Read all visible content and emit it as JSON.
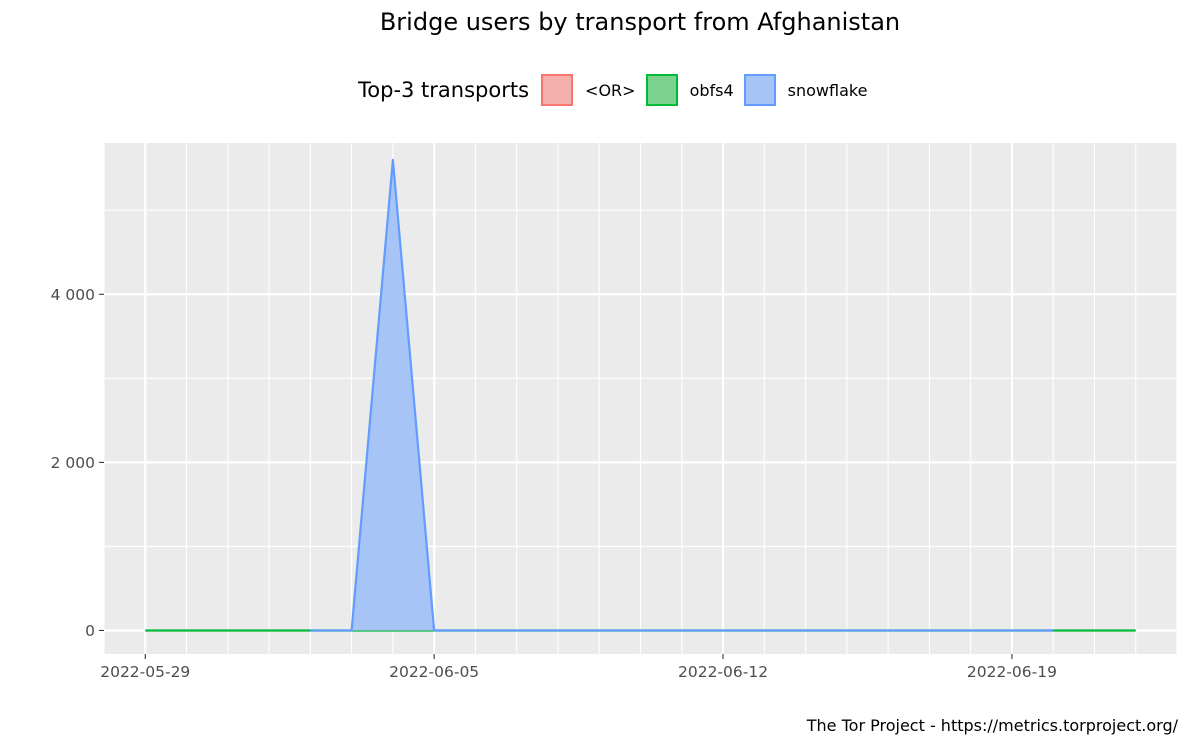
{
  "chart_data": {
    "type": "area",
    "title": "Bridge users by transport from Afghanistan",
    "xlabel": "",
    "ylabel": "",
    "xlim": [
      "2022-05-28",
      "2022-06-23"
    ],
    "ylim": [
      -280,
      5800
    ],
    "y_ticks": [
      0,
      2000,
      4000
    ],
    "y_tick_labels": [
      "0",
      "2 000",
      "4 000"
    ],
    "x_ticks": [
      "2022-05-29",
      "2022-06-05",
      "2022-06-12",
      "2022-06-19"
    ],
    "grid": true,
    "legend": {
      "title": "Top-3 transports",
      "position": "top",
      "entries": [
        {
          "name": "<OR>",
          "fill": "#f4b0ac",
          "line": "#f8766d"
        },
        {
          "name": "obfs4",
          "fill": "#7cd390",
          "line": "#00ba38"
        },
        {
          "name": "snowflake",
          "fill": "#a6c4f6",
          "line": "#619cff"
        }
      ]
    },
    "series": [
      {
        "name": "<OR>",
        "points": []
      },
      {
        "name": "obfs4",
        "points": [
          [
            "2022-05-29",
            0
          ],
          [
            "2022-05-30",
            0
          ],
          [
            "2022-05-31",
            0
          ],
          [
            "2022-06-01",
            0
          ],
          [
            "2022-06-02",
            0
          ],
          [
            "2022-06-03",
            0
          ],
          [
            "2022-06-04",
            0
          ],
          [
            "2022-06-05",
            0
          ],
          [
            "2022-06-06",
            0
          ],
          [
            "2022-06-07",
            0
          ],
          [
            "2022-06-08",
            0
          ],
          [
            "2022-06-09",
            0
          ],
          [
            "2022-06-10",
            0
          ],
          [
            "2022-06-11",
            0
          ],
          [
            "2022-06-12",
            0
          ],
          [
            "2022-06-13",
            0
          ],
          [
            "2022-06-14",
            0
          ],
          [
            "2022-06-15",
            0
          ],
          [
            "2022-06-16",
            0
          ],
          [
            "2022-06-17",
            0
          ],
          [
            "2022-06-18",
            0
          ],
          [
            "2022-06-19",
            0
          ],
          [
            "2022-06-20",
            0
          ],
          [
            "2022-06-21",
            0
          ],
          [
            "2022-06-22",
            0
          ]
        ]
      },
      {
        "name": "snowflake",
        "points": [
          [
            "2022-06-02",
            0
          ],
          [
            "2022-06-03",
            0
          ],
          [
            "2022-06-04",
            5600
          ],
          [
            "2022-06-05",
            0
          ],
          [
            "2022-06-06",
            0
          ],
          [
            "2022-06-07",
            0
          ],
          [
            "2022-06-08",
            0
          ],
          [
            "2022-06-09",
            0
          ],
          [
            "2022-06-10",
            0
          ],
          [
            "2022-06-11",
            0
          ],
          [
            "2022-06-12",
            0
          ],
          [
            "2022-06-13",
            0
          ],
          [
            "2022-06-14",
            0
          ],
          [
            "2022-06-15",
            0
          ],
          [
            "2022-06-16",
            0
          ],
          [
            "2022-06-17",
            0
          ],
          [
            "2022-06-18",
            0
          ],
          [
            "2022-06-19",
            0
          ],
          [
            "2022-06-20",
            0
          ]
        ]
      }
    ],
    "caption": "The Tor Project - https://metrics.torproject.org/"
  }
}
